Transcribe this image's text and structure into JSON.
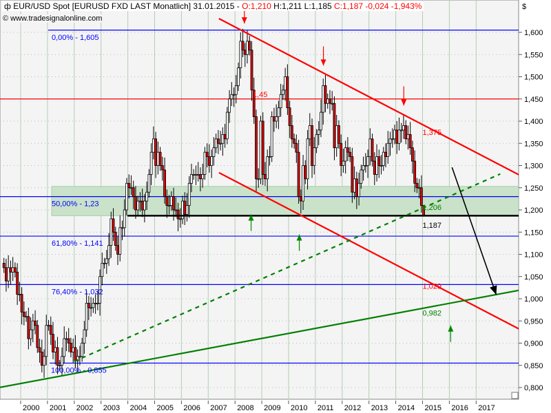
{
  "header": {
    "symbol_icon": "candlestick-icon",
    "title": "EUR/USD Spot [EURUSD FXD LAST Monatlich] 31.01.2015 - ",
    "open": "O:1,210",
    "high_low": " H:1,211 L:1,185 ",
    "close_change": "C:1,187 -0,024 -1,943%",
    "source": "www.tradesignalonline.com",
    "currency": "$"
  },
  "colors": {
    "background": "#f4f4f4",
    "up": "#ffffff",
    "down": "#e00000",
    "resistance": "#ff0000",
    "support": "#008000",
    "fib": "#0000ff",
    "zone": "#c9e2c9"
  },
  "chart_data": {
    "type": "candlestick",
    "interval": "monthly",
    "start_month": "1999-05",
    "closes": [
      1.07,
      1.04,
      1.07,
      1.06,
      1.07,
      1.06,
      1.01,
      1.01,
      0.97,
      0.96,
      0.96,
      0.91,
      0.93,
      0.95,
      0.94,
      0.89,
      0.88,
      0.85,
      0.87,
      0.94,
      0.94,
      0.92,
      0.88,
      0.89,
      0.85,
      0.85,
      0.87,
      0.91,
      0.91,
      0.9,
      0.88,
      0.89,
      0.86,
      0.87,
      0.87,
      0.9,
      0.93,
      0.99,
      0.98,
      0.98,
      0.99,
      0.99,
      0.99,
      1.05,
      1.08,
      1.08,
      1.09,
      1.12,
      1.18,
      1.15,
      1.12,
      1.1,
      1.16,
      1.16,
      1.2,
      1.26,
      1.25,
      1.25,
      1.23,
      1.2,
      1.22,
      1.22,
      1.2,
      1.22,
      1.24,
      1.28,
      1.33,
      1.36,
      1.3,
      1.33,
      1.3,
      1.29,
      1.23,
      1.21,
      1.21,
      1.23,
      1.2,
      1.2,
      1.18,
      1.18,
      1.22,
      1.19,
      1.21,
      1.26,
      1.28,
      1.28,
      1.28,
      1.28,
      1.27,
      1.28,
      1.33,
      1.32,
      1.3,
      1.32,
      1.34,
      1.36,
      1.35,
      1.35,
      1.37,
      1.36,
      1.42,
      1.45,
      1.46,
      1.46,
      1.48,
      1.52,
      1.58,
      1.56,
      1.55,
      1.58,
      1.56,
      1.47,
      1.41,
      1.27,
      1.27,
      1.4,
      1.28,
      1.27,
      1.32,
      1.32,
      1.41,
      1.4,
      1.41,
      1.43,
      1.46,
      1.47,
      1.5,
      1.43,
      1.39,
      1.36,
      1.35,
      1.33,
      1.23,
      1.22,
      1.3,
      1.27,
      1.36,
      1.39,
      1.3,
      1.34,
      1.37,
      1.38,
      1.42,
      1.48,
      1.44,
      1.45,
      1.44,
      1.44,
      1.34,
      1.39,
      1.35,
      1.3,
      1.31,
      1.34,
      1.33,
      1.32,
      1.24,
      1.27,
      1.23,
      1.26,
      1.29,
      1.3,
      1.3,
      1.32,
      1.36,
      1.31,
      1.28,
      1.32,
      1.3,
      1.3,
      1.33,
      1.32,
      1.35,
      1.36,
      1.36,
      1.38,
      1.35,
      1.38,
      1.38,
      1.39,
      1.36,
      1.37,
      1.34,
      1.31,
      1.26,
      1.25,
      1.25,
      1.21,
      1.187
    ],
    "last_candle": {
      "open": 1.21,
      "high": 1.211,
      "low": 1.185,
      "close": 1.187
    },
    "x_tick_labels": [
      "2000",
      "2001",
      "2002",
      "2003",
      "2004",
      "2005",
      "2006",
      "2007",
      "2008",
      "2009",
      "2010",
      "2011",
      "2012",
      "2013",
      "2014",
      "2015",
      "2016",
      "2017"
    ],
    "y_tick_labels": [
      "1,600",
      "1,550",
      "1,500",
      "1,450",
      "1,400",
      "1,350",
      "1,300",
      "1,250",
      "1,200",
      "1,150",
      "1,100",
      "1,050",
      "1,000",
      "0,950",
      "0,900",
      "0,850",
      "0,800"
    ],
    "ylim": [
      0.8,
      1.6
    ],
    "xlim": [
      1999.2,
      2018.6
    ],
    "grid": true,
    "fib_levels": [
      {
        "label": "0,00% - 1,605",
        "value": 1.605
      },
      {
        "label": "50,00% - 1,23",
        "value": 1.23
      },
      {
        "label": "61,80% - 1,141",
        "value": 1.141
      },
      {
        "label": "76,40% - 1,032",
        "value": 1.032
      },
      {
        "label": "100,00% - 0,855",
        "value": 0.855
      }
    ],
    "horizontal_lines": [
      {
        "label": "1,45",
        "value": 1.45,
        "color": "#ff0000"
      },
      {
        "label": "1,187",
        "value": 1.187,
        "color": "#000000"
      }
    ],
    "support_zone": [
      1.187,
      1.253
    ],
    "trend_lines": [
      {
        "kind": "resistance",
        "from": [
          2007.4,
          1.631
        ],
        "to": [
          2019.3,
          1.257
        ],
        "style": "solid",
        "color": "#ff0000"
      },
      {
        "kind": "channel-lower",
        "from": [
          2007.4,
          1.284
        ],
        "to": [
          2019.3,
          0.91
        ],
        "style": "solid",
        "color": "#ff0000"
      },
      {
        "kind": "support",
        "from": [
          1999.2,
          0.8
        ],
        "to": [
          2018.6,
          1.019
        ],
        "style": "solid",
        "color": "#008000"
      },
      {
        "kind": "support",
        "from": [
          2002.0,
          0.859
        ],
        "to": [
          2017.9,
          1.281
        ],
        "style": "dashed",
        "color": "#008000"
      }
    ],
    "projection_arrow": {
      "from": [
        2016.1,
        1.296
      ],
      "to": [
        2017.75,
        1.009
      ]
    },
    "value_labels": [
      {
        "text": "1,375",
        "at": [
          2015.0,
          1.375
        ],
        "color": "#ff0000"
      },
      {
        "text": "1,206",
        "at": [
          2015.0,
          1.206
        ],
        "color": "#008000"
      },
      {
        "text": "1,187",
        "at": [
          2015.0,
          1.166
        ],
        "color": "#000000"
      },
      {
        "text": "1,029",
        "at": [
          2015.0,
          1.029
        ],
        "color": "#ff0000"
      },
      {
        "text": "0,982",
        "at": [
          2015.0,
          0.968
        ],
        "color": "#008000"
      }
    ],
    "down_arrows": [
      [
        2008.35,
        1.62
      ],
      [
        2011.3,
        1.525
      ],
      [
        2014.3,
        1.435
      ]
    ],
    "up_arrows": [
      [
        2008.6,
        1.19
      ],
      [
        2010.4,
        1.145
      ],
      [
        2016.05,
        0.94
      ]
    ]
  }
}
